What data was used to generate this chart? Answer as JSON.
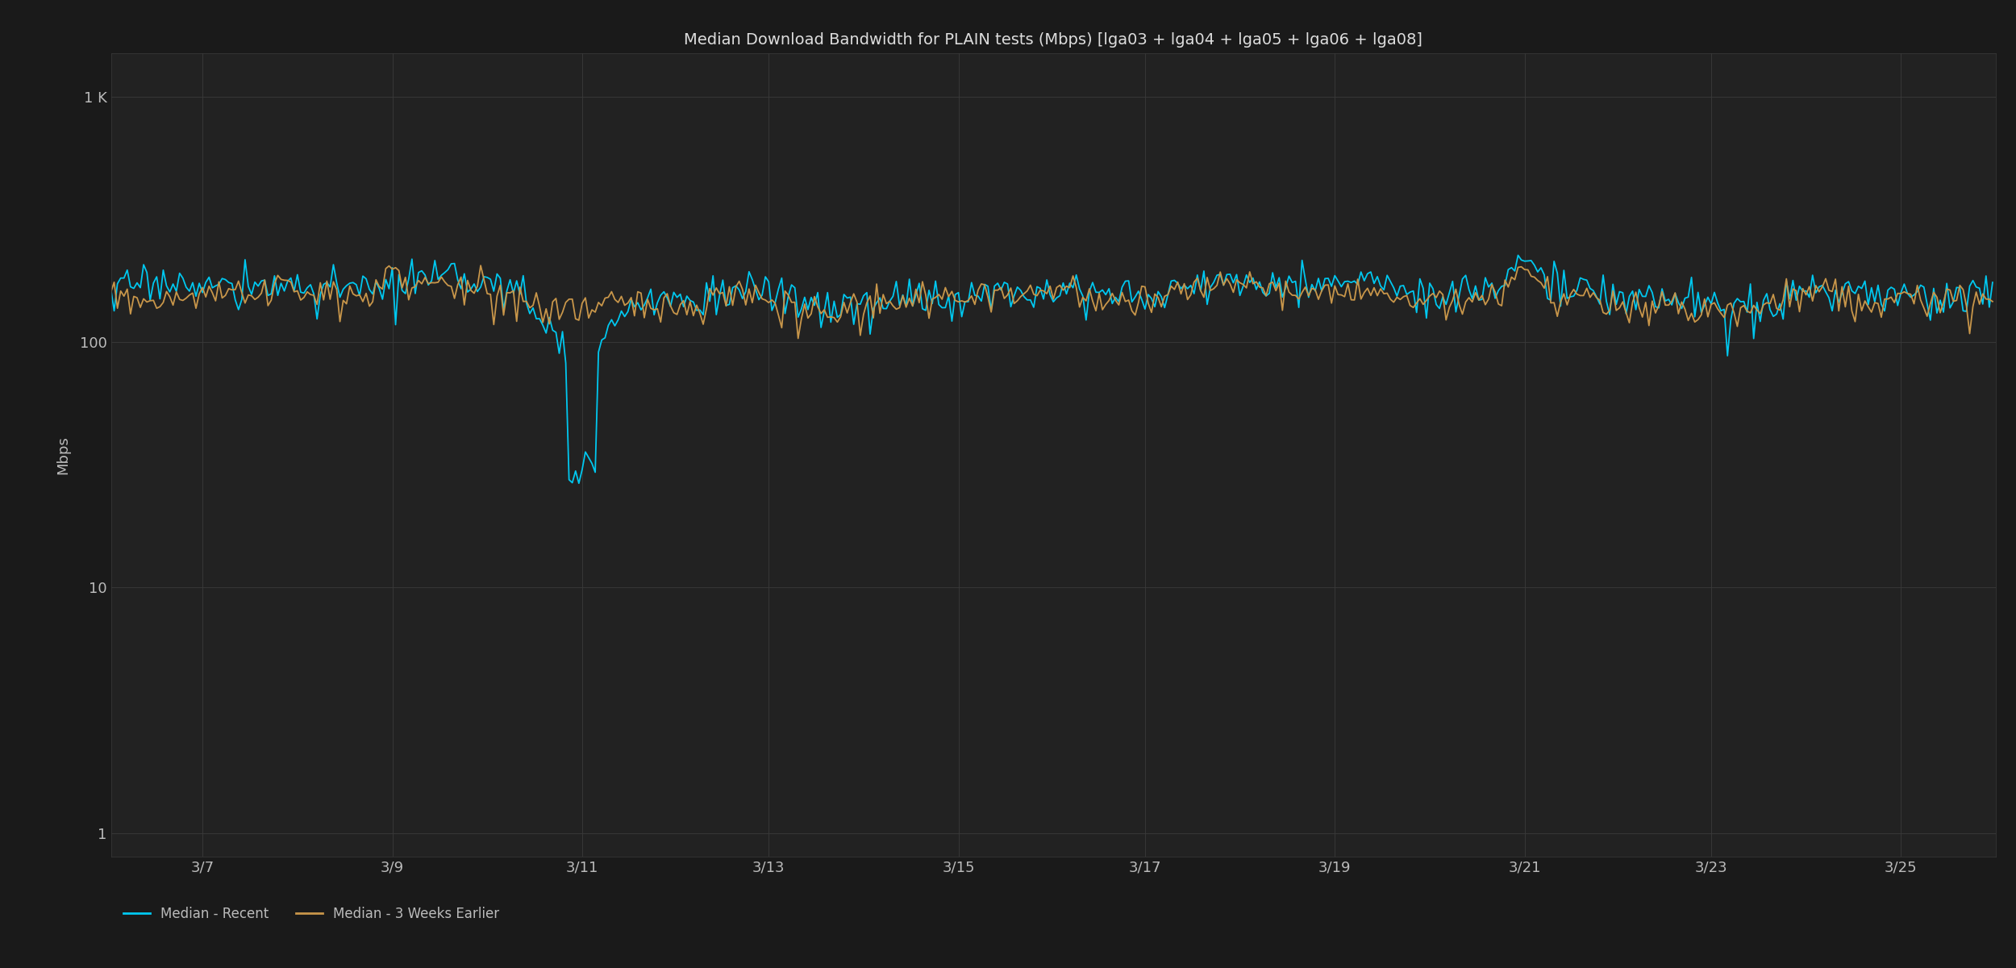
{
  "title": "Median Download Bandwidth for PLAIN tests (Mbps) [lga03 + lga04 + lga05 + lga06 + lga08]",
  "ylabel": "Mbps",
  "background_color": "#1a1a1a",
  "plot_bg_color": "#222222",
  "grid_color": "#3a3a3a",
  "text_color": "#bbbbbb",
  "title_color": "#dddddd",
  "line_recent_color": "#00c8f0",
  "line_older_color": "#c8964a",
  "line_width": 1.3,
  "ylim_min": 0.8,
  "ylim_max": 1500,
  "x_tick_labels": [
    "3/7",
    "3/9",
    "3/11",
    "3/13",
    "3/15",
    "3/17",
    "3/19",
    "3/21",
    "3/23",
    "3/25"
  ],
  "ytick_labels": [
    "1",
    "10",
    "100",
    "1 K"
  ],
  "yticks": [
    1,
    10,
    100,
    1000
  ],
  "legend_recent": "Median - Recent",
  "legend_older": "Median - 3 Weeks Earlier",
  "n_points": 576
}
